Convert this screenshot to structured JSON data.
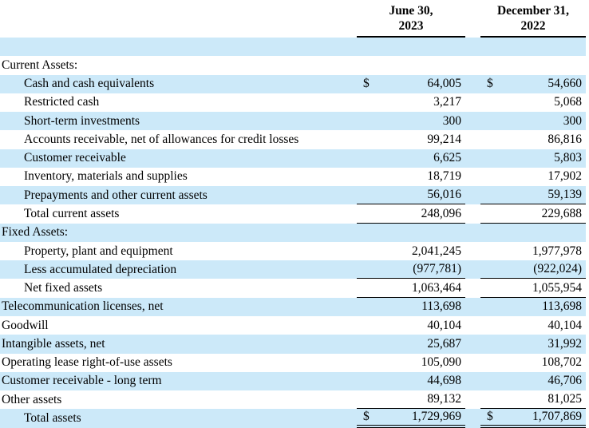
{
  "document": {
    "type": "balance-sheet-assets-table",
    "shade_color": "#cce9f9",
    "columns": [
      {
        "line1": "June 30,",
        "line2": "2023"
      },
      {
        "line1": "December 31,",
        "line2": "2022"
      }
    ],
    "rows": [
      {
        "label": "",
        "v1": "",
        "v2": "",
        "shade": true
      },
      {
        "label": "Current Assets:",
        "section": true
      },
      {
        "label": "Cash and cash equivalents",
        "indent": true,
        "d1": "$",
        "v1": "64,005",
        "d2": "$",
        "v2": "54,660",
        "shade": true
      },
      {
        "label": "Restricted cash",
        "indent": true,
        "v1": "3,217",
        "v2": "5,068"
      },
      {
        "label": "Short-term investments",
        "indent": true,
        "v1": "300",
        "v2": "300",
        "shade": true
      },
      {
        "label": "Accounts receivable, net of allowances for credit losses",
        "indent": true,
        "v1": "99,214",
        "v2": "86,816"
      },
      {
        "label": "Customer receivable",
        "indent": true,
        "v1": "6,625",
        "v2": "5,803",
        "shade": true
      },
      {
        "label": "Inventory, materials and supplies",
        "indent": true,
        "v1": "18,719",
        "v2": "17,902"
      },
      {
        "label": "Prepayments and other current assets",
        "indent": true,
        "v1": "56,016",
        "v2": "59,139",
        "shade": true,
        "underline": "single"
      },
      {
        "label": "Total current assets",
        "indent": true,
        "v1": "248,096",
        "v2": "229,688",
        "underline": "single"
      },
      {
        "label": "Fixed Assets:",
        "section": true,
        "shade": true
      },
      {
        "label": "Property, plant and equipment",
        "indent": true,
        "v1": "2,041,245",
        "v2": "1,977,978"
      },
      {
        "label": "Less accumulated depreciation",
        "indent": true,
        "v1": "(977,781)",
        "v2": "(922,024)",
        "shade": true,
        "underline": "single"
      },
      {
        "label": "Net fixed assets",
        "indent": true,
        "v1": "1,063,464",
        "v2": "1,055,954",
        "underline": "single"
      },
      {
        "label": "Telecommunication licenses, net",
        "v1": "113,698",
        "v2": "113,698",
        "shade": true
      },
      {
        "label": "Goodwill",
        "v1": "40,104",
        "v2": "40,104"
      },
      {
        "label": "Intangible assets, net",
        "v1": "25,687",
        "v2": "31,992",
        "shade": true
      },
      {
        "label": "Operating lease right-of-use assets",
        "v1": "105,090",
        "v2": "108,702"
      },
      {
        "label": "Customer receivable - long term",
        "v1": "44,698",
        "v2": "46,706",
        "shade": true
      },
      {
        "label": "Other assets",
        "v1": "89,132",
        "v2": "81,025",
        "underline": "single"
      },
      {
        "label": "Total assets",
        "indent": true,
        "d1": "$",
        "v1": "1,729,969",
        "d2": "$",
        "v2": "1,707,869",
        "shade": true,
        "underline": "double"
      }
    ]
  }
}
